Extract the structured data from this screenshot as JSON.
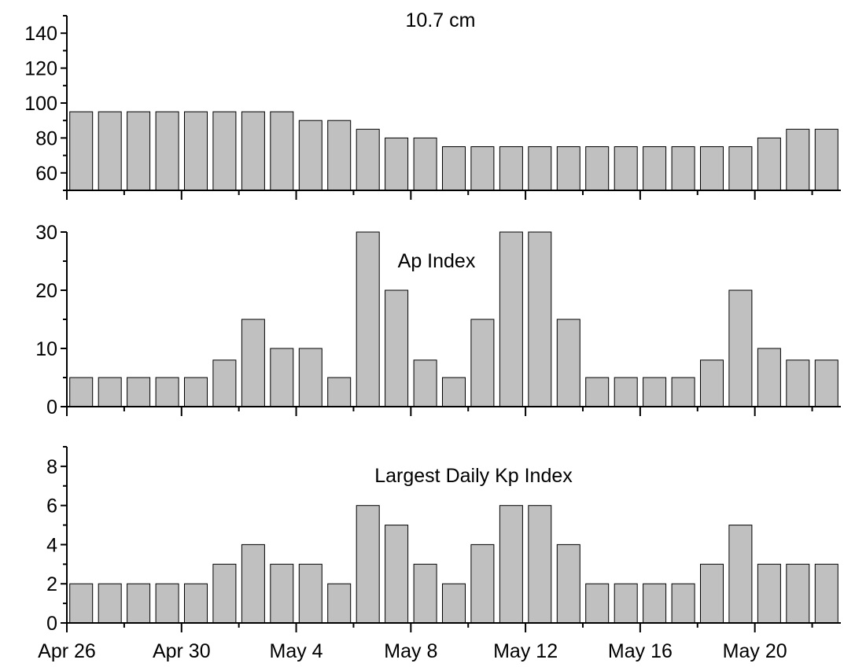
{
  "chart_data": [
    {
      "type": "bar",
      "title": "10.7 cm",
      "ylim": [
        50,
        150
      ],
      "yticks": [
        60,
        80,
        100,
        120,
        140
      ],
      "values": [
        95,
        95,
        95,
        95,
        95,
        95,
        95,
        95,
        90,
        90,
        85,
        80,
        80,
        75,
        75,
        75,
        75,
        75,
        75,
        75,
        75,
        75,
        75,
        75,
        80,
        85,
        85
      ],
      "bar_color": "#c0c0c0"
    },
    {
      "type": "bar",
      "title": "Ap Index",
      "ylim": [
        0,
        30
      ],
      "yticks": [
        0,
        10,
        20,
        30
      ],
      "values": [
        5,
        5,
        5,
        5,
        5,
        8,
        15,
        10,
        10,
        5,
        30,
        20,
        8,
        5,
        15,
        30,
        30,
        15,
        5,
        5,
        5,
        5,
        8,
        20,
        10,
        8,
        8
      ],
      "bar_color": "#c0c0c0"
    },
    {
      "type": "bar",
      "title": "Largest Daily Kp Index",
      "ylim": [
        0,
        9
      ],
      "yticks": [
        0,
        2,
        4,
        6,
        8
      ],
      "values": [
        2,
        2,
        2,
        2,
        2,
        3,
        4,
        3,
        3,
        2,
        6,
        5,
        3,
        2,
        4,
        6,
        6,
        4,
        2,
        2,
        2,
        2,
        3,
        5,
        3,
        3,
        3
      ],
      "bar_color": "#c0c0c0",
      "x_tick_labels": [
        {
          "label": "Apr 26",
          "day_index": 0
        },
        {
          "label": "Apr 30",
          "day_index": 4
        },
        {
          "label": "May 4",
          "day_index": 8
        },
        {
          "label": "May 8",
          "day_index": 12
        },
        {
          "label": "May 12",
          "day_index": 16
        },
        {
          "label": "May 16",
          "day_index": 20
        },
        {
          "label": "May 20",
          "day_index": 24
        }
      ]
    }
  ]
}
